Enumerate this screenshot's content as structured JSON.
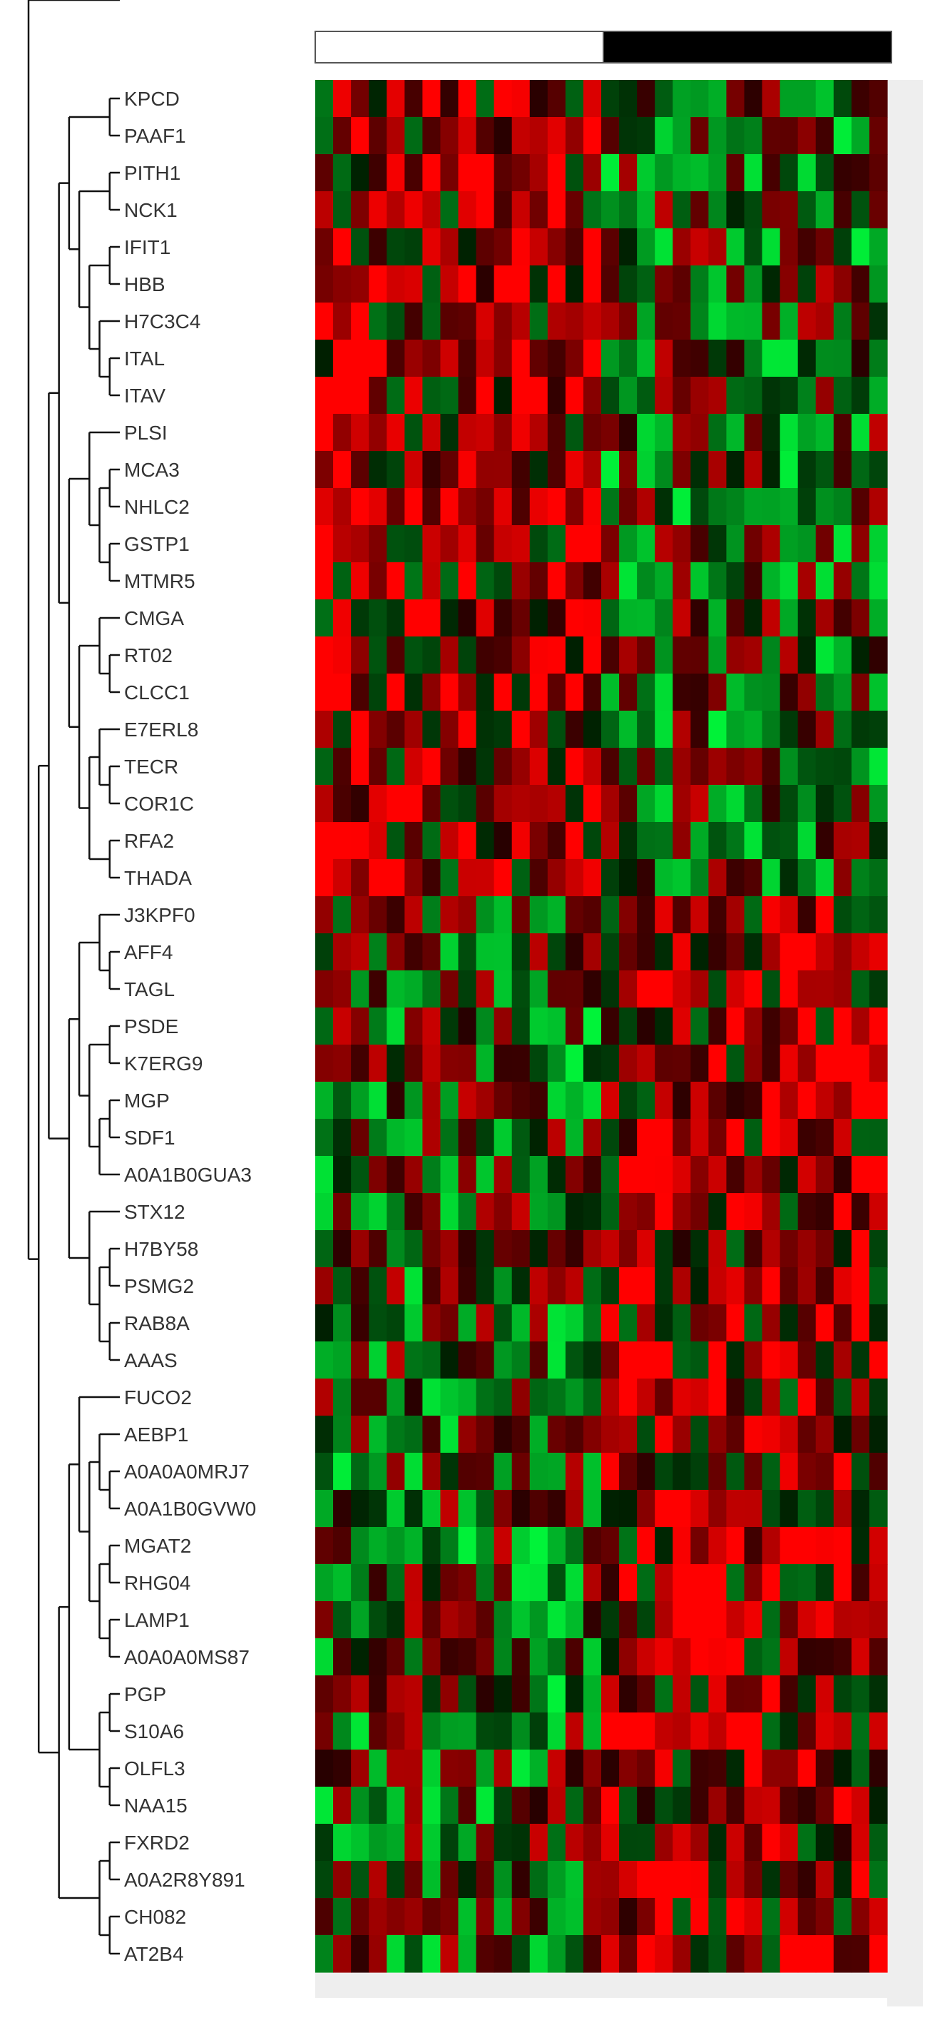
{
  "chart_data": {
    "type": "heatmap",
    "title": "",
    "xlabel": "",
    "ylabel": "",
    "legend": "none",
    "colors": {
      "low": "#00ff66",
      "mid": "#000000",
      "high": "#ff0000",
      "group_bar_a": "#ffffff",
      "group_bar_b": "#000000"
    },
    "groups": [
      {
        "color": "#ffffff",
        "columns": 16
      },
      {
        "color": "#000000",
        "columns": 16
      }
    ],
    "rows": [
      "KPCD",
      "PAAF1",
      "PITH1",
      "NCK1",
      "IFIT1",
      "HBB",
      "H7C3C4",
      "ITAL",
      "ITAV",
      "PLSI",
      "MCA3",
      "NHLC2",
      "GSTP1",
      "MTMR5",
      "CMGA",
      "RT02",
      "CLCC1",
      "E7ERL8",
      "TECR",
      "COR1C",
      "RFA2",
      "THADA",
      "J3KPF0",
      "AFF4",
      "TAGL",
      "PSDE",
      "K7ERG9",
      "MGP",
      "SDF1",
      "A0A1B0GUA3",
      "STX12",
      "H7BY58",
      "PSMG2",
      "RAB8A",
      "AAAS",
      "FUCO2",
      "AEBP1",
      "A0A0A0MRJ7",
      "A0A1B0GVW0",
      "MGAT2",
      "RHG04",
      "LAMP1",
      "A0A0A0MS87",
      "PGP",
      "S10A6",
      "OLFL3",
      "NAA15",
      "FXRD2",
      "A0A2R8Y891",
      "CH082",
      "AT2B4"
    ],
    "n_columns": 32,
    "value_range": [
      -1,
      1
    ]
  }
}
